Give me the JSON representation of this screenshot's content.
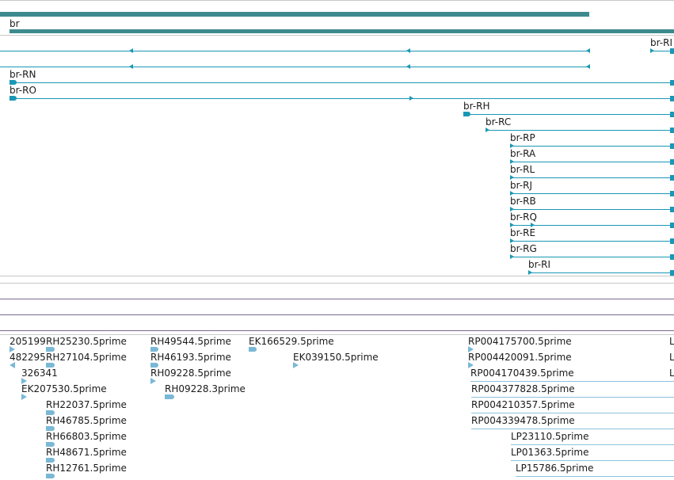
{
  "gene_track": {
    "gene_label": "br",
    "edge_label": "br-RI",
    "transcripts": [
      {
        "label": "br-RN"
      },
      {
        "label": "br-RO"
      },
      {
        "label": "br-RH"
      },
      {
        "label": "br-RC"
      },
      {
        "label": "br-RP"
      },
      {
        "label": "br-RA"
      },
      {
        "label": "br-RL"
      },
      {
        "label": "br-RJ"
      },
      {
        "label": "br-RB"
      },
      {
        "label": "br-RQ"
      },
      {
        "label": "br-RE"
      },
      {
        "label": "br-RG"
      },
      {
        "label": "br-RI"
      }
    ]
  },
  "est_track": {
    "col1": [
      "205199",
      "482295",
      "326341",
      "EK207530.5prime"
    ],
    "col2": [
      "RH25230.5prime",
      "RH27104.5prime",
      "RH22037.5prime",
      "RH46785.5prime",
      "RH66803.5prime",
      "RH48671.5prime",
      "RH12761.5prime"
    ],
    "col3": [
      "RH49544.5prime",
      "RH46193.5prime",
      "RH09228.5prime",
      "RH09228.3prime"
    ],
    "col4": [
      "EK166529.5prime",
      "EK039150.5prime"
    ],
    "col5": [
      "RP004175700.5prime",
      "RP004420091.5prime",
      "RP004170439.5prime",
      "RP004377828.5prime",
      "RP004210357.5prime",
      "RP004339478.5prime"
    ],
    "col6": [
      "LP23110.5prime",
      "LP01363.5prime",
      "LP15786.5prime"
    ],
    "edge": [
      "L",
      "L",
      "L"
    ]
  },
  "colors": {
    "gene_bar": "#3d8a8e",
    "transcript": "#1a97b5",
    "est": "#7ab8d6",
    "separator": "#7b6a8f"
  }
}
